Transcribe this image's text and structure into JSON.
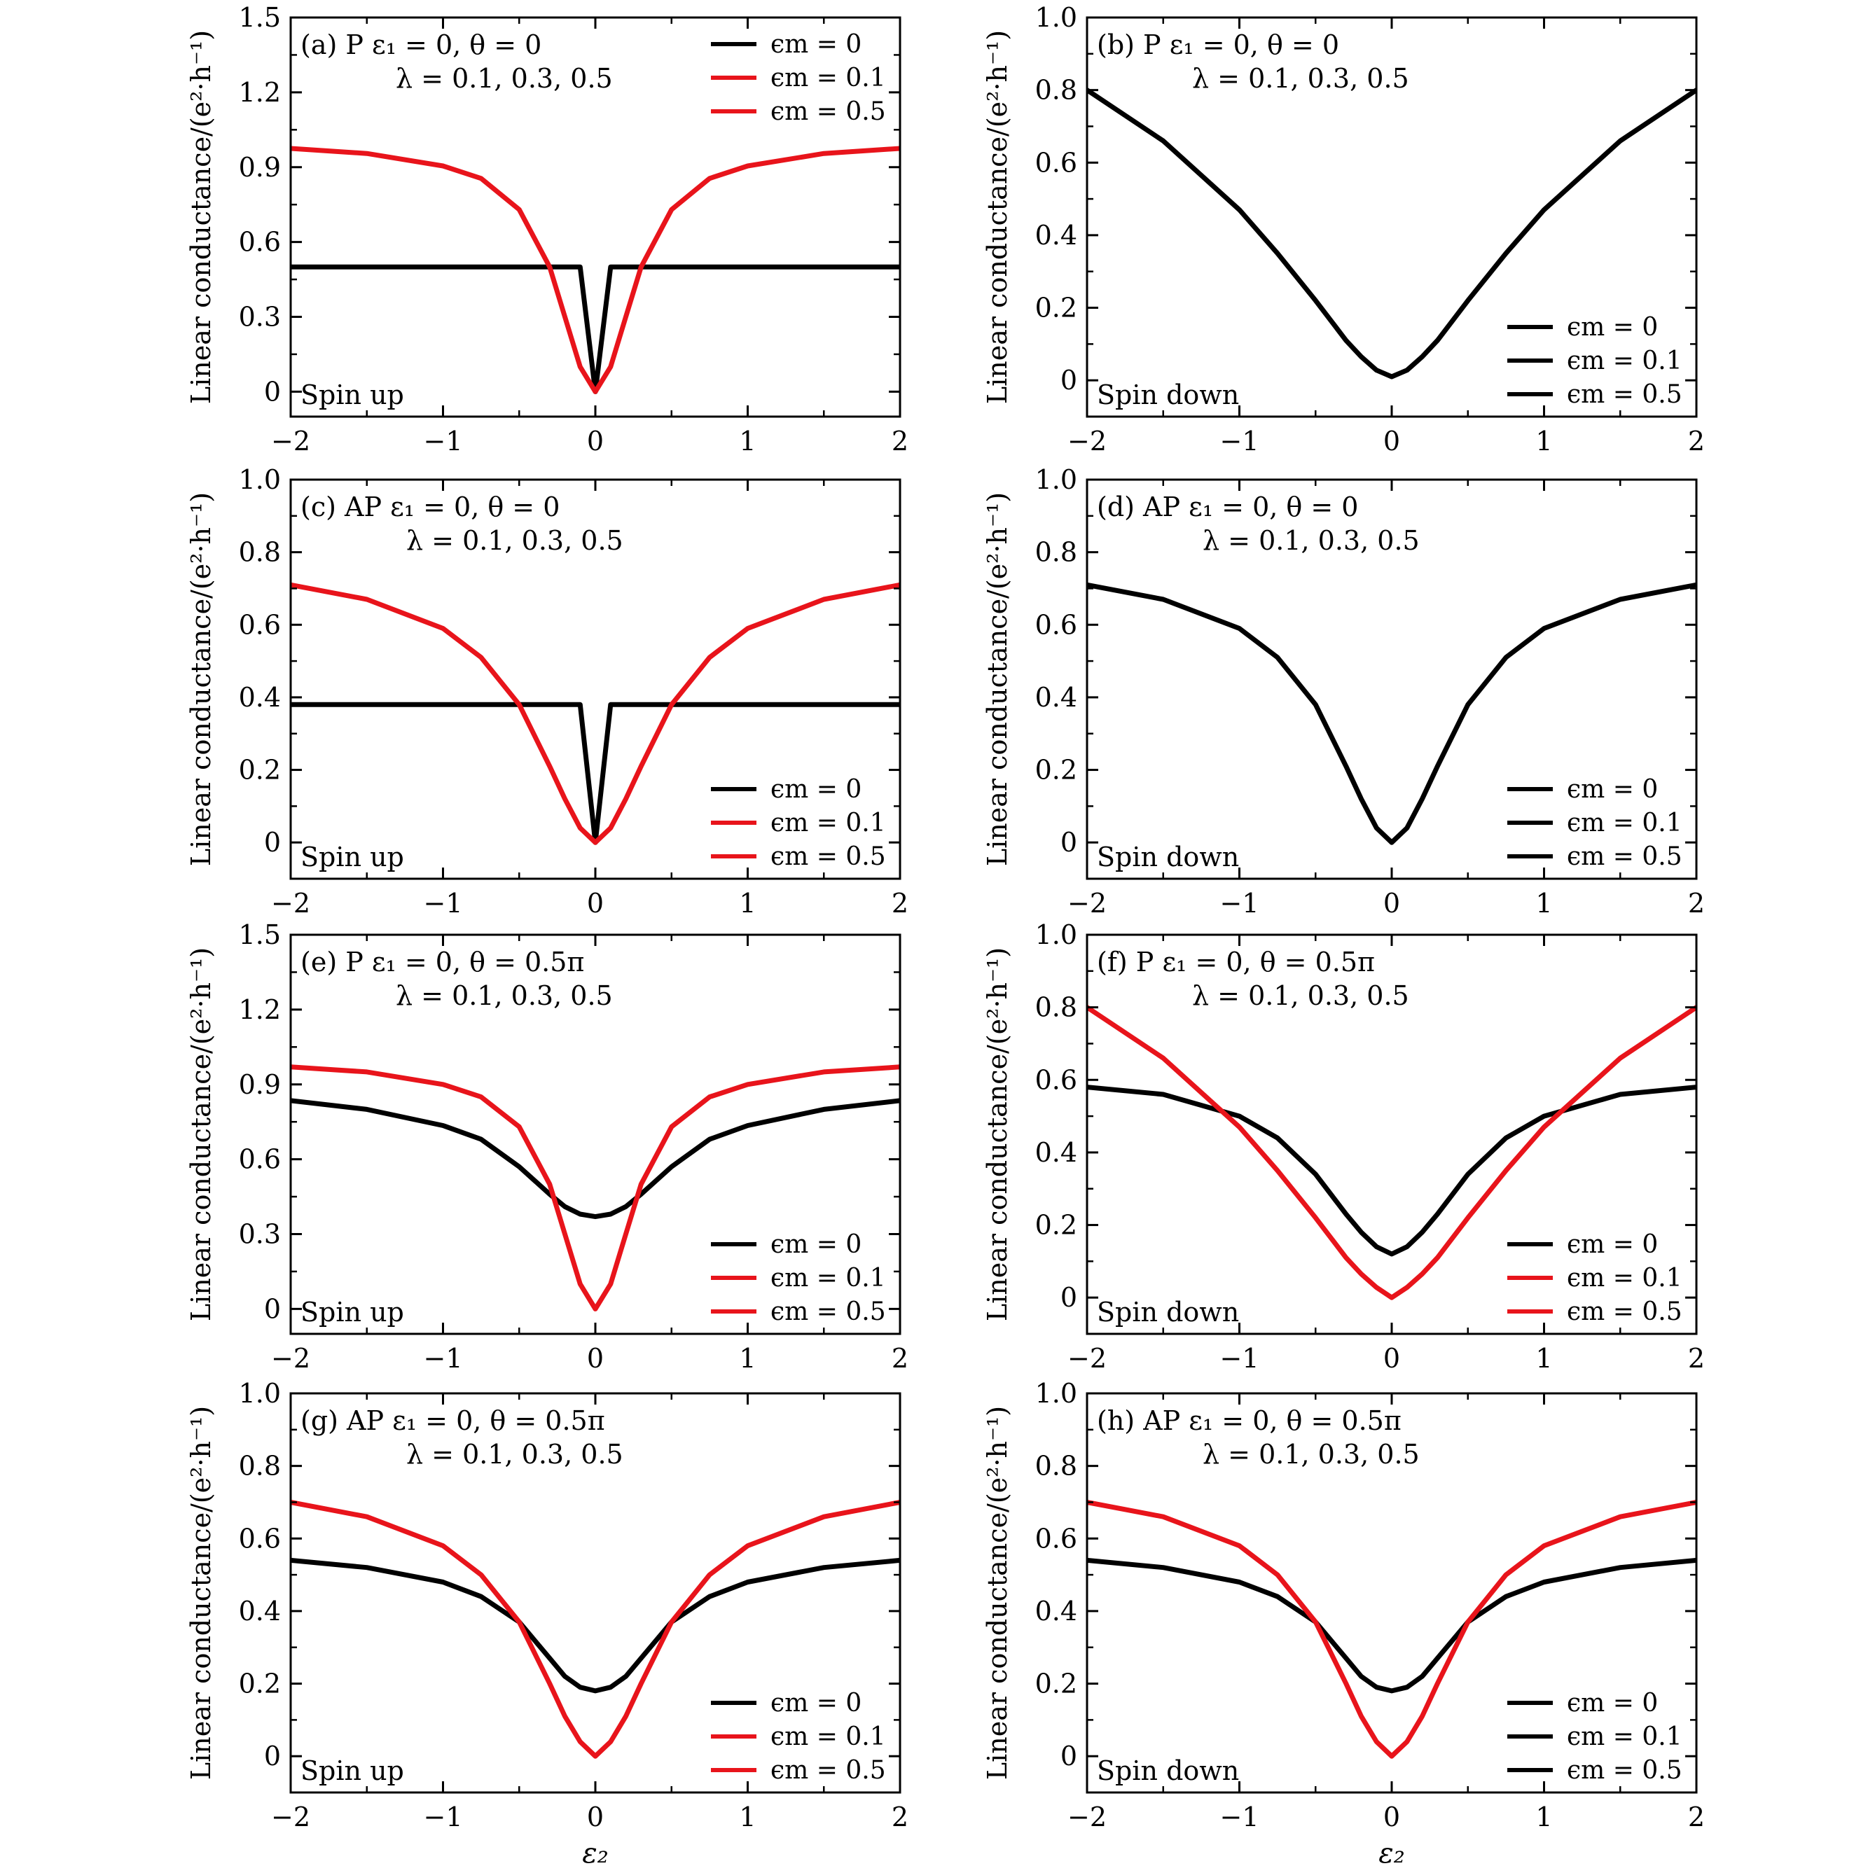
{
  "figure": {
    "panels": [
      {
        "id": "a",
        "annotation_line1": "(a) P   ε₁ = 0, θ = 0",
        "annotation_line2": "λ = 0.1, 0.3, 0.5",
        "spin_label": "Spin up",
        "ylabel": "Linear conductance/(e²·h⁻¹)",
        "xlabel": "",
        "xlim": [
          -2,
          2
        ],
        "ylim": [
          -0.1,
          1.5
        ],
        "xticks": [
          -2,
          -1,
          0,
          1,
          2
        ],
        "xtick_labels": [
          "−2",
          "−1",
          "0",
          "1",
          "2"
        ],
        "yticks": [
          0,
          0.3,
          0.6,
          0.9,
          1.2,
          1.5
        ],
        "ytick_labels": [
          "0",
          "0.3",
          "0.6",
          "0.9",
          "1.2",
          "1.5"
        ],
        "legend_position": "top-right",
        "legend": [
          {
            "label": "ϵm = 0",
            "color": "#000000"
          },
          {
            "label": "ϵm = 0.1",
            "color": "#e8141b"
          },
          {
            "label": "ϵm = 0.5",
            "color": "#e8141b"
          }
        ]
      },
      {
        "id": "b",
        "annotation_line1": "(b) P   ε₁ = 0, θ = 0",
        "annotation_line2": "λ = 0.1, 0.3, 0.5",
        "spin_label": "Spin down",
        "ylabel": "Linear conductance/(e²·h⁻¹)",
        "xlabel": "",
        "xlim": [
          -2,
          2
        ],
        "ylim": [
          -0.1,
          1.0
        ],
        "xticks": [
          -2,
          -1,
          0,
          1,
          2
        ],
        "xtick_labels": [
          "−2",
          "−1",
          "0",
          "1",
          "2"
        ],
        "yticks": [
          0,
          0.2,
          0.4,
          0.6,
          0.8,
          1.0
        ],
        "ytick_labels": [
          "0",
          "0.2",
          "0.4",
          "0.6",
          "0.8",
          "1.0"
        ],
        "legend_position": "bottom-right",
        "legend": [
          {
            "label": "ϵm = 0",
            "color": "#000000"
          },
          {
            "label": "ϵm = 0.1",
            "color": "#000000"
          },
          {
            "label": "ϵm = 0.5",
            "color": "#000000"
          }
        ]
      },
      {
        "id": "c",
        "annotation_line1": "(c) AP   ε₁ = 0, θ = 0",
        "annotation_line2": "λ = 0.1, 0.3, 0.5",
        "spin_label": "Spin up",
        "ylabel": "Linear conductance/(e²·h⁻¹)",
        "xlabel": "",
        "xlim": [
          -2,
          2
        ],
        "ylim": [
          -0.1,
          1.0
        ],
        "xticks": [
          -2,
          -1,
          0,
          1,
          2
        ],
        "xtick_labels": [
          "−2",
          "−1",
          "0",
          "1",
          "2"
        ],
        "yticks": [
          0,
          0.2,
          0.4,
          0.6,
          0.8,
          1.0
        ],
        "ytick_labels": [
          "0",
          "0.2",
          "0.4",
          "0.6",
          "0.8",
          "1.0"
        ],
        "legend_position": "bottom-right",
        "legend": [
          {
            "label": "ϵm = 0",
            "color": "#000000"
          },
          {
            "label": "ϵm = 0.1",
            "color": "#e8141b"
          },
          {
            "label": "ϵm = 0.5",
            "color": "#e8141b"
          }
        ]
      },
      {
        "id": "d",
        "annotation_line1": "(d) AP   ε₁ = 0, θ = 0",
        "annotation_line2": "λ = 0.1, 0.3, 0.5",
        "spin_label": "Spin down",
        "ylabel": "Linear conductance/(e²·h⁻¹)",
        "xlabel": "",
        "xlim": [
          -2,
          2
        ],
        "ylim": [
          -0.1,
          1.0
        ],
        "xticks": [
          -2,
          -1,
          0,
          1,
          2
        ],
        "xtick_labels": [
          "−2",
          "−1",
          "0",
          "1",
          "2"
        ],
        "yticks": [
          0,
          0.2,
          0.4,
          0.6,
          0.8,
          1.0
        ],
        "ytick_labels": [
          "0",
          "0.2",
          "0.4",
          "0.6",
          "0.8",
          "1.0"
        ],
        "legend_position": "bottom-right",
        "legend": [
          {
            "label": "ϵm = 0",
            "color": "#000000"
          },
          {
            "label": "ϵm = 0.1",
            "color": "#000000"
          },
          {
            "label": "ϵm = 0.5",
            "color": "#000000"
          }
        ]
      },
      {
        "id": "e",
        "annotation_line1": "(e) P   ε₁ = 0, θ = 0.5π",
        "annotation_line2": "λ = 0.1, 0.3, 0.5",
        "spin_label": "Spin up",
        "ylabel": "Linear conductance/(e²·h⁻¹)",
        "xlabel": "",
        "xlim": [
          -2,
          2
        ],
        "ylim": [
          -0.1,
          1.5
        ],
        "xticks": [
          -2,
          -1,
          0,
          1,
          2
        ],
        "xtick_labels": [
          "−2",
          "−1",
          "0",
          "1",
          "2"
        ],
        "yticks": [
          0,
          0.3,
          0.6,
          0.9,
          1.2,
          1.5
        ],
        "ytick_labels": [
          "0",
          "0.3",
          "0.6",
          "0.9",
          "1.2",
          "1.5"
        ],
        "legend_position": "bottom-right",
        "legend": [
          {
            "label": "ϵm = 0",
            "color": "#000000"
          },
          {
            "label": "ϵm = 0.1",
            "color": "#e8141b"
          },
          {
            "label": "ϵm = 0.5",
            "color": "#e8141b"
          }
        ]
      },
      {
        "id": "f",
        "annotation_line1": "(f) P   ε₁ = 0, θ = 0.5π",
        "annotation_line2": "λ = 0.1, 0.3, 0.5",
        "spin_label": "Spin down",
        "ylabel": "Linear conductance/(e²·h⁻¹)",
        "xlabel": "",
        "xlim": [
          -2,
          2
        ],
        "ylim": [
          -0.1,
          1.0
        ],
        "xticks": [
          -2,
          -1,
          0,
          1,
          2
        ],
        "xtick_labels": [
          "−2",
          "−1",
          "0",
          "1",
          "2"
        ],
        "yticks": [
          0,
          0.2,
          0.4,
          0.6,
          0.8,
          1.0
        ],
        "ytick_labels": [
          "0",
          "0.2",
          "0.4",
          "0.6",
          "0.8",
          "1.0"
        ],
        "legend_position": "bottom-right",
        "legend": [
          {
            "label": "ϵm = 0",
            "color": "#000000"
          },
          {
            "label": "ϵm = 0.1",
            "color": "#e8141b"
          },
          {
            "label": "ϵm = 0.5",
            "color": "#e8141b"
          }
        ]
      },
      {
        "id": "g",
        "annotation_line1": "(g) AP   ε₁ = 0, θ = 0.5π",
        "annotation_line2": "λ = 0.1, 0.3, 0.5",
        "spin_label": "Spin up",
        "ylabel": "Linear conductance/(e²·h⁻¹)",
        "xlabel": "ε₂",
        "xlim": [
          -2,
          2
        ],
        "ylim": [
          -0.1,
          1.0
        ],
        "xticks": [
          -2,
          -1,
          0,
          1,
          2
        ],
        "xtick_labels": [
          "−2",
          "−1",
          "0",
          "1",
          "2"
        ],
        "yticks": [
          0,
          0.2,
          0.4,
          0.6,
          0.8,
          1.0
        ],
        "ytick_labels": [
          "0",
          "0.2",
          "0.4",
          "0.6",
          "0.8",
          "1.0"
        ],
        "legend_position": "bottom-right",
        "legend": [
          {
            "label": "ϵm = 0",
            "color": "#000000"
          },
          {
            "label": "ϵm = 0.1",
            "color": "#e8141b"
          },
          {
            "label": "ϵm = 0.5",
            "color": "#e8141b"
          }
        ]
      },
      {
        "id": "h",
        "annotation_line1": "(h) AP   ε₁ = 0, θ = 0.5π",
        "annotation_line2": "λ = 0.1, 0.3, 0.5",
        "spin_label": "Spin down",
        "ylabel": "Linear conductance/(e²·h⁻¹)",
        "xlabel": "ε₂",
        "xlim": [
          -2,
          2
        ],
        "ylim": [
          -0.1,
          1.0
        ],
        "xticks": [
          -2,
          -1,
          0,
          1,
          2
        ],
        "xtick_labels": [
          "−2",
          "−1",
          "0",
          "1",
          "2"
        ],
        "yticks": [
          0,
          0.2,
          0.4,
          0.6,
          0.8,
          1.0
        ],
        "ytick_labels": [
          "0",
          "0.2",
          "0.4",
          "0.6",
          "0.8",
          "1.0"
        ],
        "legend_position": "bottom-right",
        "legend": [
          {
            "label": "ϵm = 0",
            "color": "#000000"
          },
          {
            "label": "ϵm = 0.1",
            "color": "#000000"
          },
          {
            "label": "ϵm = 0.5",
            "color": "#000000"
          }
        ]
      }
    ]
  },
  "chart_data": [
    {
      "type": "line",
      "panel": "a",
      "x": [
        -2,
        -1.5,
        -1,
        -0.75,
        -0.5,
        -0.3,
        -0.2,
        -0.1,
        0,
        0.1,
        0.2,
        0.3,
        0.5,
        0.75,
        1,
        1.5,
        2
      ],
      "series": [
        {
          "color": "#000000",
          "values": [
            0.5,
            0.5,
            0.5,
            0.5,
            0.5,
            0.5,
            0.5,
            0.5,
            0.0,
            0.5,
            0.5,
            0.5,
            0.5,
            0.5,
            0.5,
            0.5,
            0.5
          ]
        },
        {
          "color": "#e8141b",
          "values": [
            0.975,
            0.955,
            0.905,
            0.855,
            0.73,
            0.5,
            0.3,
            0.1,
            0.0,
            0.1,
            0.3,
            0.5,
            0.73,
            0.855,
            0.905,
            0.955,
            0.975
          ]
        }
      ]
    },
    {
      "type": "line",
      "panel": "b",
      "x": [
        -2,
        -1.5,
        -1,
        -0.75,
        -0.5,
        -0.3,
        -0.2,
        -0.1,
        0,
        0.1,
        0.2,
        0.3,
        0.5,
        0.75,
        1,
        1.5,
        2
      ],
      "series": [
        {
          "color": "#000000",
          "values": [
            0.8,
            0.66,
            0.47,
            0.35,
            0.22,
            0.11,
            0.065,
            0.028,
            0.01,
            0.028,
            0.065,
            0.11,
            0.22,
            0.35,
            0.47,
            0.66,
            0.8
          ]
        }
      ]
    },
    {
      "type": "line",
      "panel": "c",
      "x": [
        -2,
        -1.5,
        -1,
        -0.75,
        -0.5,
        -0.3,
        -0.2,
        -0.1,
        0,
        0.1,
        0.2,
        0.3,
        0.5,
        0.75,
        1,
        1.5,
        2
      ],
      "series": [
        {
          "color": "#000000",
          "values": [
            0.38,
            0.38,
            0.38,
            0.38,
            0.38,
            0.38,
            0.38,
            0.38,
            0.0,
            0.38,
            0.38,
            0.38,
            0.38,
            0.38,
            0.38,
            0.38,
            0.38
          ]
        },
        {
          "color": "#e8141b",
          "values": [
            0.71,
            0.67,
            0.59,
            0.51,
            0.38,
            0.21,
            0.12,
            0.04,
            0.0,
            0.04,
            0.12,
            0.21,
            0.38,
            0.51,
            0.59,
            0.67,
            0.71
          ]
        }
      ]
    },
    {
      "type": "line",
      "panel": "d",
      "x": [
        -2,
        -1.5,
        -1,
        -0.75,
        -0.5,
        -0.3,
        -0.2,
        -0.1,
        0,
        0.1,
        0.2,
        0.3,
        0.5,
        0.75,
        1,
        1.5,
        2
      ],
      "series": [
        {
          "color": "#000000",
          "values": [
            0.71,
            0.67,
            0.59,
            0.51,
            0.38,
            0.21,
            0.12,
            0.04,
            0.0,
            0.04,
            0.12,
            0.21,
            0.38,
            0.51,
            0.59,
            0.67,
            0.71
          ]
        }
      ]
    },
    {
      "type": "line",
      "panel": "e",
      "x": [
        -2,
        -1.5,
        -1,
        -0.75,
        -0.5,
        -0.3,
        -0.2,
        -0.1,
        0,
        0.1,
        0.2,
        0.3,
        0.5,
        0.75,
        1,
        1.5,
        2
      ],
      "series": [
        {
          "color": "#000000",
          "values": [
            0.835,
            0.8,
            0.735,
            0.68,
            0.57,
            0.46,
            0.41,
            0.38,
            0.37,
            0.38,
            0.41,
            0.46,
            0.57,
            0.68,
            0.735,
            0.8,
            0.835
          ]
        },
        {
          "color": "#e8141b",
          "values": [
            0.97,
            0.95,
            0.9,
            0.85,
            0.73,
            0.5,
            0.3,
            0.1,
            0.0,
            0.1,
            0.3,
            0.5,
            0.73,
            0.85,
            0.9,
            0.95,
            0.97
          ]
        }
      ]
    },
    {
      "type": "line",
      "panel": "f",
      "x": [
        -2,
        -1.5,
        -1,
        -0.75,
        -0.5,
        -0.3,
        -0.2,
        -0.1,
        0,
        0.1,
        0.2,
        0.3,
        0.5,
        0.75,
        1,
        1.5,
        2
      ],
      "series": [
        {
          "color": "#000000",
          "values": [
            0.58,
            0.56,
            0.5,
            0.44,
            0.34,
            0.23,
            0.18,
            0.14,
            0.12,
            0.14,
            0.18,
            0.23,
            0.34,
            0.44,
            0.5,
            0.56,
            0.58
          ]
        },
        {
          "color": "#e8141b",
          "values": [
            0.8,
            0.66,
            0.47,
            0.35,
            0.22,
            0.11,
            0.065,
            0.028,
            0.0,
            0.028,
            0.065,
            0.11,
            0.22,
            0.35,
            0.47,
            0.66,
            0.8
          ]
        }
      ]
    },
    {
      "type": "line",
      "panel": "g",
      "x": [
        -2,
        -1.5,
        -1,
        -0.75,
        -0.5,
        -0.3,
        -0.2,
        -0.1,
        0,
        0.1,
        0.2,
        0.3,
        0.5,
        0.75,
        1,
        1.5,
        2
      ],
      "series": [
        {
          "color": "#000000",
          "values": [
            0.54,
            0.52,
            0.48,
            0.44,
            0.37,
            0.27,
            0.22,
            0.19,
            0.18,
            0.19,
            0.22,
            0.27,
            0.37,
            0.44,
            0.48,
            0.52,
            0.54
          ]
        },
        {
          "color": "#e8141b",
          "values": [
            0.7,
            0.66,
            0.58,
            0.5,
            0.37,
            0.2,
            0.11,
            0.04,
            0.0,
            0.04,
            0.11,
            0.2,
            0.37,
            0.5,
            0.58,
            0.66,
            0.7
          ]
        }
      ]
    },
    {
      "type": "line",
      "panel": "h",
      "x": [
        -2,
        -1.5,
        -1,
        -0.75,
        -0.5,
        -0.3,
        -0.2,
        -0.1,
        0,
        0.1,
        0.2,
        0.3,
        0.5,
        0.75,
        1,
        1.5,
        2
      ],
      "series": [
        {
          "color": "#000000",
          "values": [
            0.54,
            0.52,
            0.48,
            0.44,
            0.37,
            0.27,
            0.22,
            0.19,
            0.18,
            0.19,
            0.22,
            0.27,
            0.37,
            0.44,
            0.48,
            0.52,
            0.54
          ]
        },
        {
          "color": "#e8141b",
          "values": [
            0.7,
            0.66,
            0.58,
            0.5,
            0.37,
            0.2,
            0.11,
            0.04,
            0.0,
            0.04,
            0.11,
            0.2,
            0.37,
            0.5,
            0.58,
            0.66,
            0.7
          ]
        }
      ]
    }
  ]
}
